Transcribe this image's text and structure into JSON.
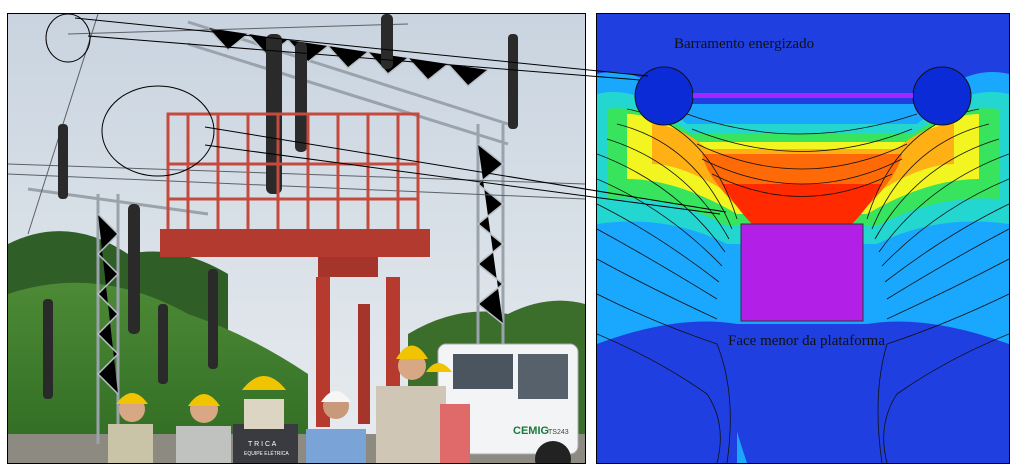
{
  "labels": {
    "busbar": "Barramento energizado",
    "platform": "Face menor da plataforma"
  },
  "photo": {
    "truck_brand": "CEMIG",
    "truck_code": "TS243",
    "shirt_text": "T R I C A",
    "shirt_subtext": "EQUIPE ELÉTRICA"
  },
  "colors": {
    "field_low": "#1f3fe0",
    "field_mid_low": "#19b4ff",
    "field_mid": "#2ee36b",
    "field_mid_high": "#f2f51f",
    "field_high": "#ff8a10",
    "field_peak": "#ff2a00",
    "busbar": "#0a2bd6",
    "platform": "#b21fe6",
    "bar_line": "#a624ff"
  }
}
